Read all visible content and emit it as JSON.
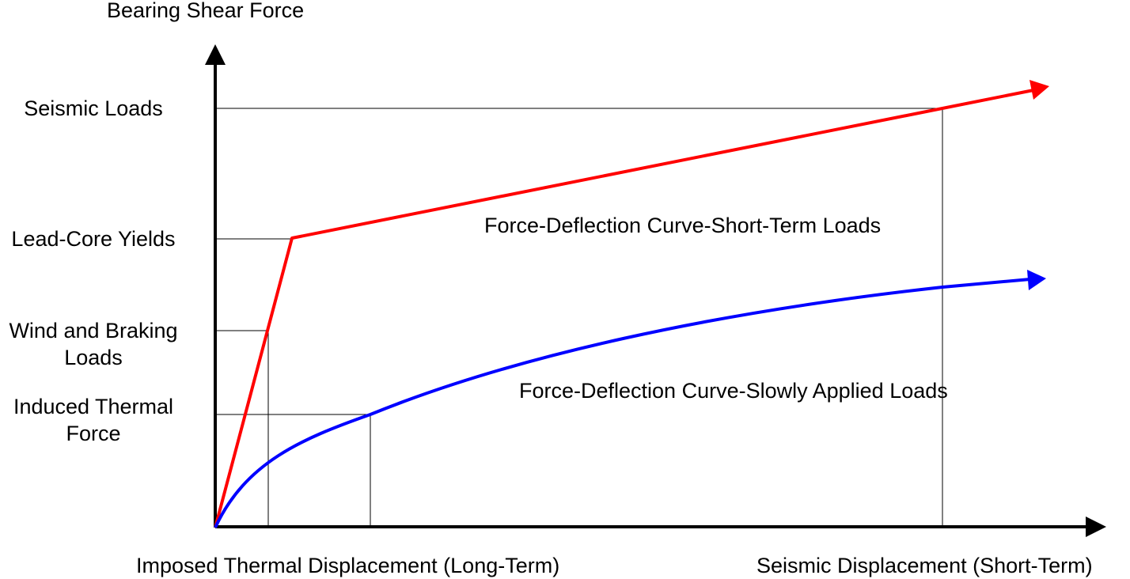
{
  "axes": {
    "y_title": "Bearing Shear Force",
    "x_label_long_term": "Imposed Thermal Displacement (Long-Term)",
    "x_label_short_term": "Seismic Displacement (Short-Term)"
  },
  "force_levels": {
    "seismic": "Seismic Loads",
    "lead_core": "Lead-Core Yields",
    "wind_braking_line1": "Wind and Braking",
    "wind_braking_line2": "Loads",
    "thermal_line1": "Induced Thermal",
    "thermal_line2": "Force"
  },
  "curves": {
    "short_term": {
      "label": "Force-Deflection Curve-Short-Term Loads",
      "color": "#ff0000"
    },
    "slow": {
      "label": "Force-Deflection Curve-Slowly Applied Loads",
      "color": "#0000ff"
    }
  },
  "axis_color": "#000000"
}
